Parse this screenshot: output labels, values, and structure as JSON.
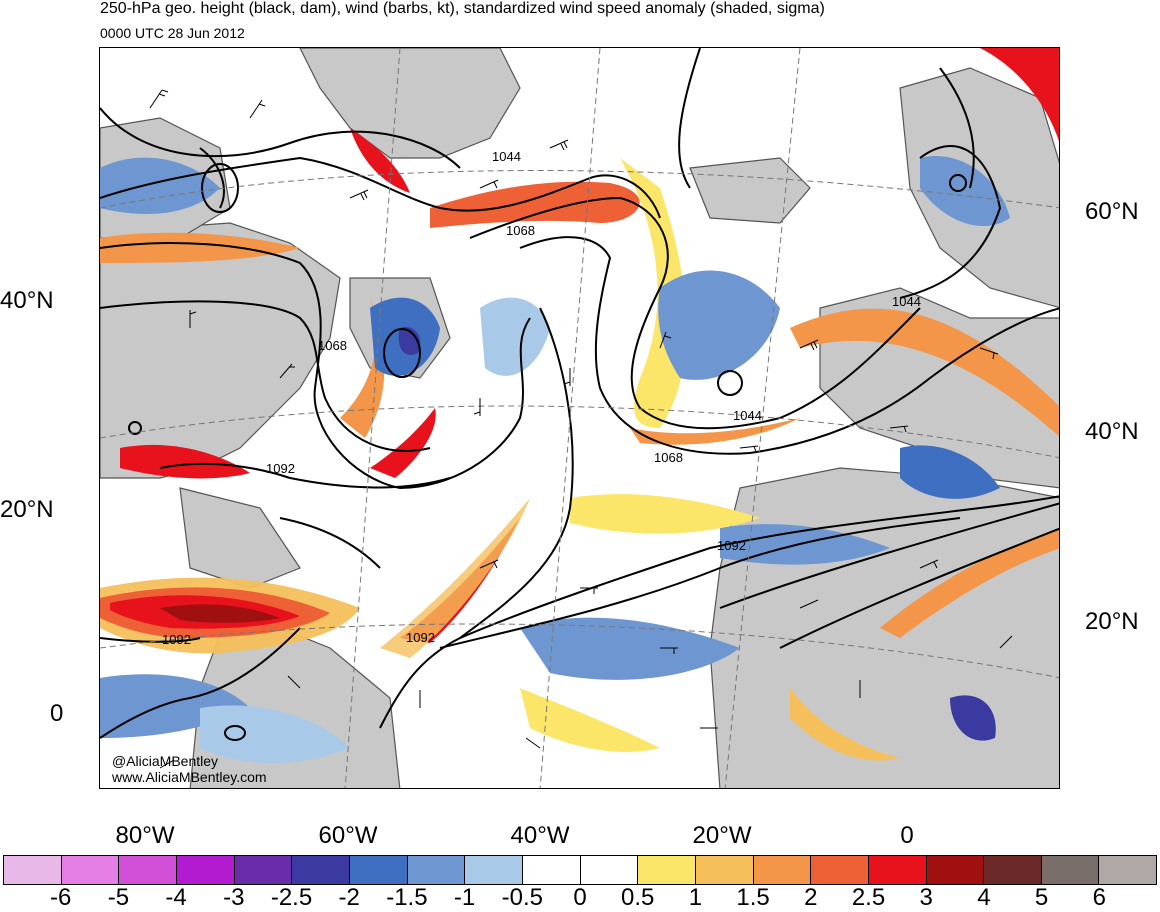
{
  "header": {
    "title": "250-hPa geo. height (black, dam), wind (barbs, kt), standardized wind speed anomaly (shaded, sigma)",
    "subtitle": "0000 UTC 28 Jun 2012"
  },
  "credits": {
    "handle": "@AliciaMBentley",
    "website": "www.AliciaMBentley.com"
  },
  "axes": {
    "lat_left": [
      "40°N",
      "20°N",
      "0"
    ],
    "lat_right": [
      "60°N",
      "40°N",
      "20°N"
    ],
    "lon_bottom": [
      "80°W",
      "60°W",
      "40°W",
      "20°W",
      "0"
    ]
  },
  "contour_labels": [
    "1044",
    "1068",
    "1068",
    "1044",
    "1044",
    "1068",
    "1092",
    "1092",
    "1092",
    "1092"
  ],
  "colors": {
    "land": "#c8c8c8",
    "coast": "#555555",
    "contour": "#000000"
  },
  "colorbar": {
    "colors": [
      "#e8b8e8",
      "#e57fe5",
      "#d24fd8",
      "#b21bd0",
      "#6a2ca8",
      "#3a3aa0",
      "#3f6fc0",
      "#6e96d0",
      "#a9c9e8",
      "#ffffff",
      "#ffffff",
      "#fbe66a",
      "#f5c05c",
      "#f39649",
      "#ee6035",
      "#e8121c",
      "#a01010",
      "#6b2828",
      "#7a6e6b",
      "#b0a8a6"
    ],
    "labels": [
      "-6",
      "-5",
      "-4",
      "-3",
      "-2.5",
      "-2",
      "-1.5",
      "-1",
      "-0.5",
      "0",
      "0.5",
      "1",
      "1.5",
      "2",
      "2.5",
      "3",
      "4",
      "5",
      "6"
    ]
  }
}
